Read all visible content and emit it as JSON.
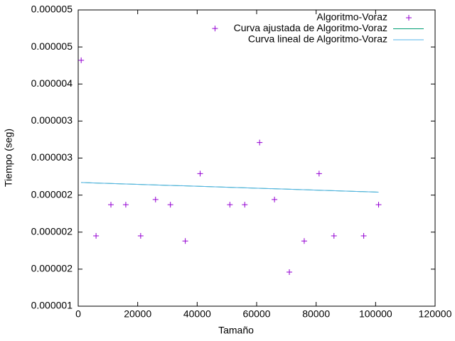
{
  "chart_data": {
    "type": "scatter",
    "xlabel": "Tamaño",
    "ylabel": "Tiempo (seg)",
    "xlim": [
      0,
      120000
    ],
    "xticks": [
      0,
      20000,
      40000,
      60000,
      80000,
      100000,
      120000
    ],
    "ylim": [
      1e-06,
      5e-06
    ],
    "yticks": [
      {
        "value": 1e-06,
        "label": "0.000001"
      },
      {
        "value": 1.5e-06,
        "label": "0.000002"
      },
      {
        "value": 2e-06,
        "label": "0.000002"
      },
      {
        "value": 2.5e-06,
        "label": "0.000002"
      },
      {
        "value": 3e-06,
        "label": "0.000003"
      },
      {
        "value": 3.5e-06,
        "label": "0.000003"
      },
      {
        "value": 4e-06,
        "label": "0.000004"
      },
      {
        "value": 4.5e-06,
        "label": "0.000005"
      },
      {
        "value": 5e-06,
        "label": "0.000005"
      }
    ],
    "legend": "top-right",
    "series": [
      {
        "name": "Algoritmo-Voraz",
        "color": "#9400d3",
        "style": "points",
        "x": [
          1000,
          6000,
          11000,
          16000,
          21000,
          26000,
          31000,
          36000,
          41000,
          46000,
          51000,
          56000,
          61000,
          66000,
          71000,
          76000,
          81000,
          86000,
          96000,
          101000
        ],
        "values": [
          4.32e-06,
          1.95e-06,
          2.37e-06,
          2.37e-06,
          1.95e-06,
          2.44e-06,
          2.37e-06,
          1.88e-06,
          2.79e-06,
          4.75e-06,
          2.37e-06,
          2.37e-06,
          3.21e-06,
          2.44e-06,
          1.46e-06,
          1.88e-06,
          2.79e-06,
          1.95e-06,
          1.95e-06,
          2.37e-06
        ]
      },
      {
        "name": "Curva ajustada de Algoritmo-Voraz",
        "color": "#009e73",
        "style": "lines",
        "x": [
          1000,
          101000
        ],
        "values": [
          2.67e-06,
          2.54e-06
        ]
      },
      {
        "name": "Curva lineal de Algoritmo-Voraz",
        "color": "#56b4e9",
        "style": "lines",
        "x": [
          1000,
          101000
        ],
        "values": [
          2.67e-06,
          2.54e-06
        ]
      }
    ]
  }
}
